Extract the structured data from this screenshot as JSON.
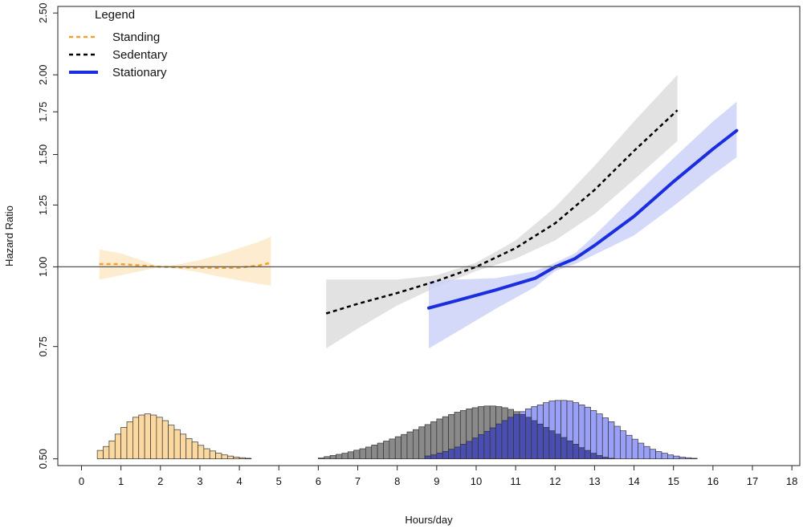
{
  "chart_data": {
    "type": "line",
    "xlabel": "Hours/day",
    "ylabel": "Hazard Ratio",
    "log_y": true,
    "xlim": [
      -0.6,
      18.2
    ],
    "ylim": [
      0.488,
      2.56
    ],
    "x_ticks": [
      "0",
      "1",
      "2",
      "3",
      "4",
      "5",
      "6",
      "7",
      "8",
      "9",
      "10",
      "11",
      "12",
      "13",
      "14",
      "15",
      "16",
      "17",
      "18"
    ],
    "y_ticks": [
      "0.50",
      "0.75",
      "1.00",
      "1.25",
      "1.50",
      "1.75",
      "2.00",
      "2.50"
    ],
    "reference_line": 1.0,
    "legend": {
      "title": "Legend",
      "position": "top-left",
      "items": [
        {
          "label": "Standing",
          "style": "dashed",
          "color": "#f0a030"
        },
        {
          "label": "Sedentary",
          "style": "dashed",
          "color": "#000000"
        },
        {
          "label": "Stationary",
          "style": "solid",
          "color": "#1a2ee0"
        }
      ]
    },
    "series": [
      {
        "name": "Standing",
        "color": "#f0a030",
        "band_color": "#fde9c8",
        "style": "dashed",
        "x": [
          0.45,
          1.0,
          1.5,
          2.0,
          2.5,
          3.0,
          3.5,
          4.0,
          4.5,
          4.8
        ],
        "y": [
          1.01,
          1.01,
          1.005,
          1.0,
          0.998,
          0.997,
          0.996,
          0.997,
          1.005,
          1.015
        ],
        "lower": [
          0.955,
          0.97,
          0.985,
          1.0,
          0.992,
          0.98,
          0.965,
          0.952,
          0.94,
          0.935
        ],
        "upper": [
          1.065,
          1.05,
          1.025,
          1.0,
          1.01,
          1.025,
          1.045,
          1.07,
          1.095,
          1.115
        ]
      },
      {
        "name": "Sedentary",
        "color": "#000000",
        "band_color": "#dddddd",
        "style": "dashed",
        "x": [
          6.2,
          7.0,
          8.0,
          9.0,
          10.0,
          11.0,
          12.0,
          13.0,
          14.0,
          15.1
        ],
        "y": [
          0.845,
          0.875,
          0.91,
          0.95,
          1.0,
          1.07,
          1.17,
          1.32,
          1.52,
          1.76
        ],
        "lower": [
          0.745,
          0.8,
          0.87,
          0.93,
          0.985,
          1.03,
          1.1,
          1.21,
          1.37,
          1.575
        ],
        "upper": [
          0.955,
          0.955,
          0.955,
          0.97,
          1.015,
          1.1,
          1.24,
          1.44,
          1.69,
          2.0
        ]
      },
      {
        "name": "Stationary",
        "color": "#1a2ee0",
        "band_color": "#cdd2f8",
        "style": "solid",
        "x": [
          8.8,
          9.5,
          10.5,
          11.5,
          12.0,
          12.5,
          13.0,
          14.0,
          15.0,
          16.0,
          16.6
        ],
        "y": [
          0.862,
          0.885,
          0.92,
          0.96,
          1.0,
          1.03,
          1.08,
          1.2,
          1.36,
          1.53,
          1.635
        ],
        "lower": [
          0.745,
          0.79,
          0.86,
          0.93,
          0.985,
          1.01,
          1.045,
          1.12,
          1.245,
          1.395,
          1.485
        ],
        "upper": [
          0.95,
          0.955,
          0.96,
          0.985,
          1.015,
          1.05,
          1.12,
          1.29,
          1.48,
          1.69,
          1.815
        ]
      }
    ],
    "histograms": [
      {
        "name": "Standing",
        "fill": "#fad8a0",
        "stroke": "#333333",
        "bin_start": 0.4,
        "bin_width": 0.15,
        "heights": [
          0.075,
          0.11,
          0.16,
          0.22,
          0.28,
          0.33,
          0.37,
          0.39,
          0.4,
          0.39,
          0.37,
          0.34,
          0.3,
          0.26,
          0.22,
          0.18,
          0.15,
          0.12,
          0.09,
          0.07,
          0.05,
          0.035,
          0.025,
          0.015,
          0.01,
          0.005,
          0.0,
          0.0,
          0.0,
          0.0
        ]
      },
      {
        "name": "Sedentary",
        "fill": "#8a8a8a",
        "stroke": "#333333",
        "bin_start": 6.0,
        "bin_width": 0.15,
        "heights": [
          0.008,
          0.02,
          0.03,
          0.04,
          0.05,
          0.063,
          0.077,
          0.09,
          0.105,
          0.123,
          0.14,
          0.158,
          0.177,
          0.197,
          0.217,
          0.24,
          0.26,
          0.285,
          0.305,
          0.33,
          0.355,
          0.375,
          0.395,
          0.415,
          0.43,
          0.445,
          0.455,
          0.465,
          0.47,
          0.47,
          0.465,
          0.455,
          0.44,
          0.42,
          0.395,
          0.37,
          0.34,
          0.31,
          0.28,
          0.25,
          0.22,
          0.19,
          0.16,
          0.13,
          0.1,
          0.075,
          0.05,
          0.03,
          0.015,
          0.005,
          0.0,
          0.0,
          0.0,
          0.0,
          0.0,
          0.0,
          0.0
        ]
      },
      {
        "name": "Stationary",
        "fill": "#9aa0f5",
        "stroke": "#333333",
        "bin_start": 8.7,
        "bin_width": 0.15,
        "heights": [
          0.025,
          0.035,
          0.05,
          0.065,
          0.085,
          0.105,
          0.13,
          0.155,
          0.185,
          0.215,
          0.245,
          0.275,
          0.31,
          0.34,
          0.37,
          0.395,
          0.42,
          0.445,
          0.465,
          0.48,
          0.5,
          0.515,
          0.52,
          0.52,
          0.515,
          0.5,
          0.48,
          0.46,
          0.43,
          0.4,
          0.365,
          0.33,
          0.29,
          0.25,
          0.21,
          0.175,
          0.14,
          0.11,
          0.085,
          0.065,
          0.05,
          0.035,
          0.025,
          0.015,
          0.01,
          0.005,
          0.0,
          0.0,
          0.0
        ]
      }
    ],
    "histogram_overlap_fill": "#4a4eb0",
    "grid": false
  }
}
